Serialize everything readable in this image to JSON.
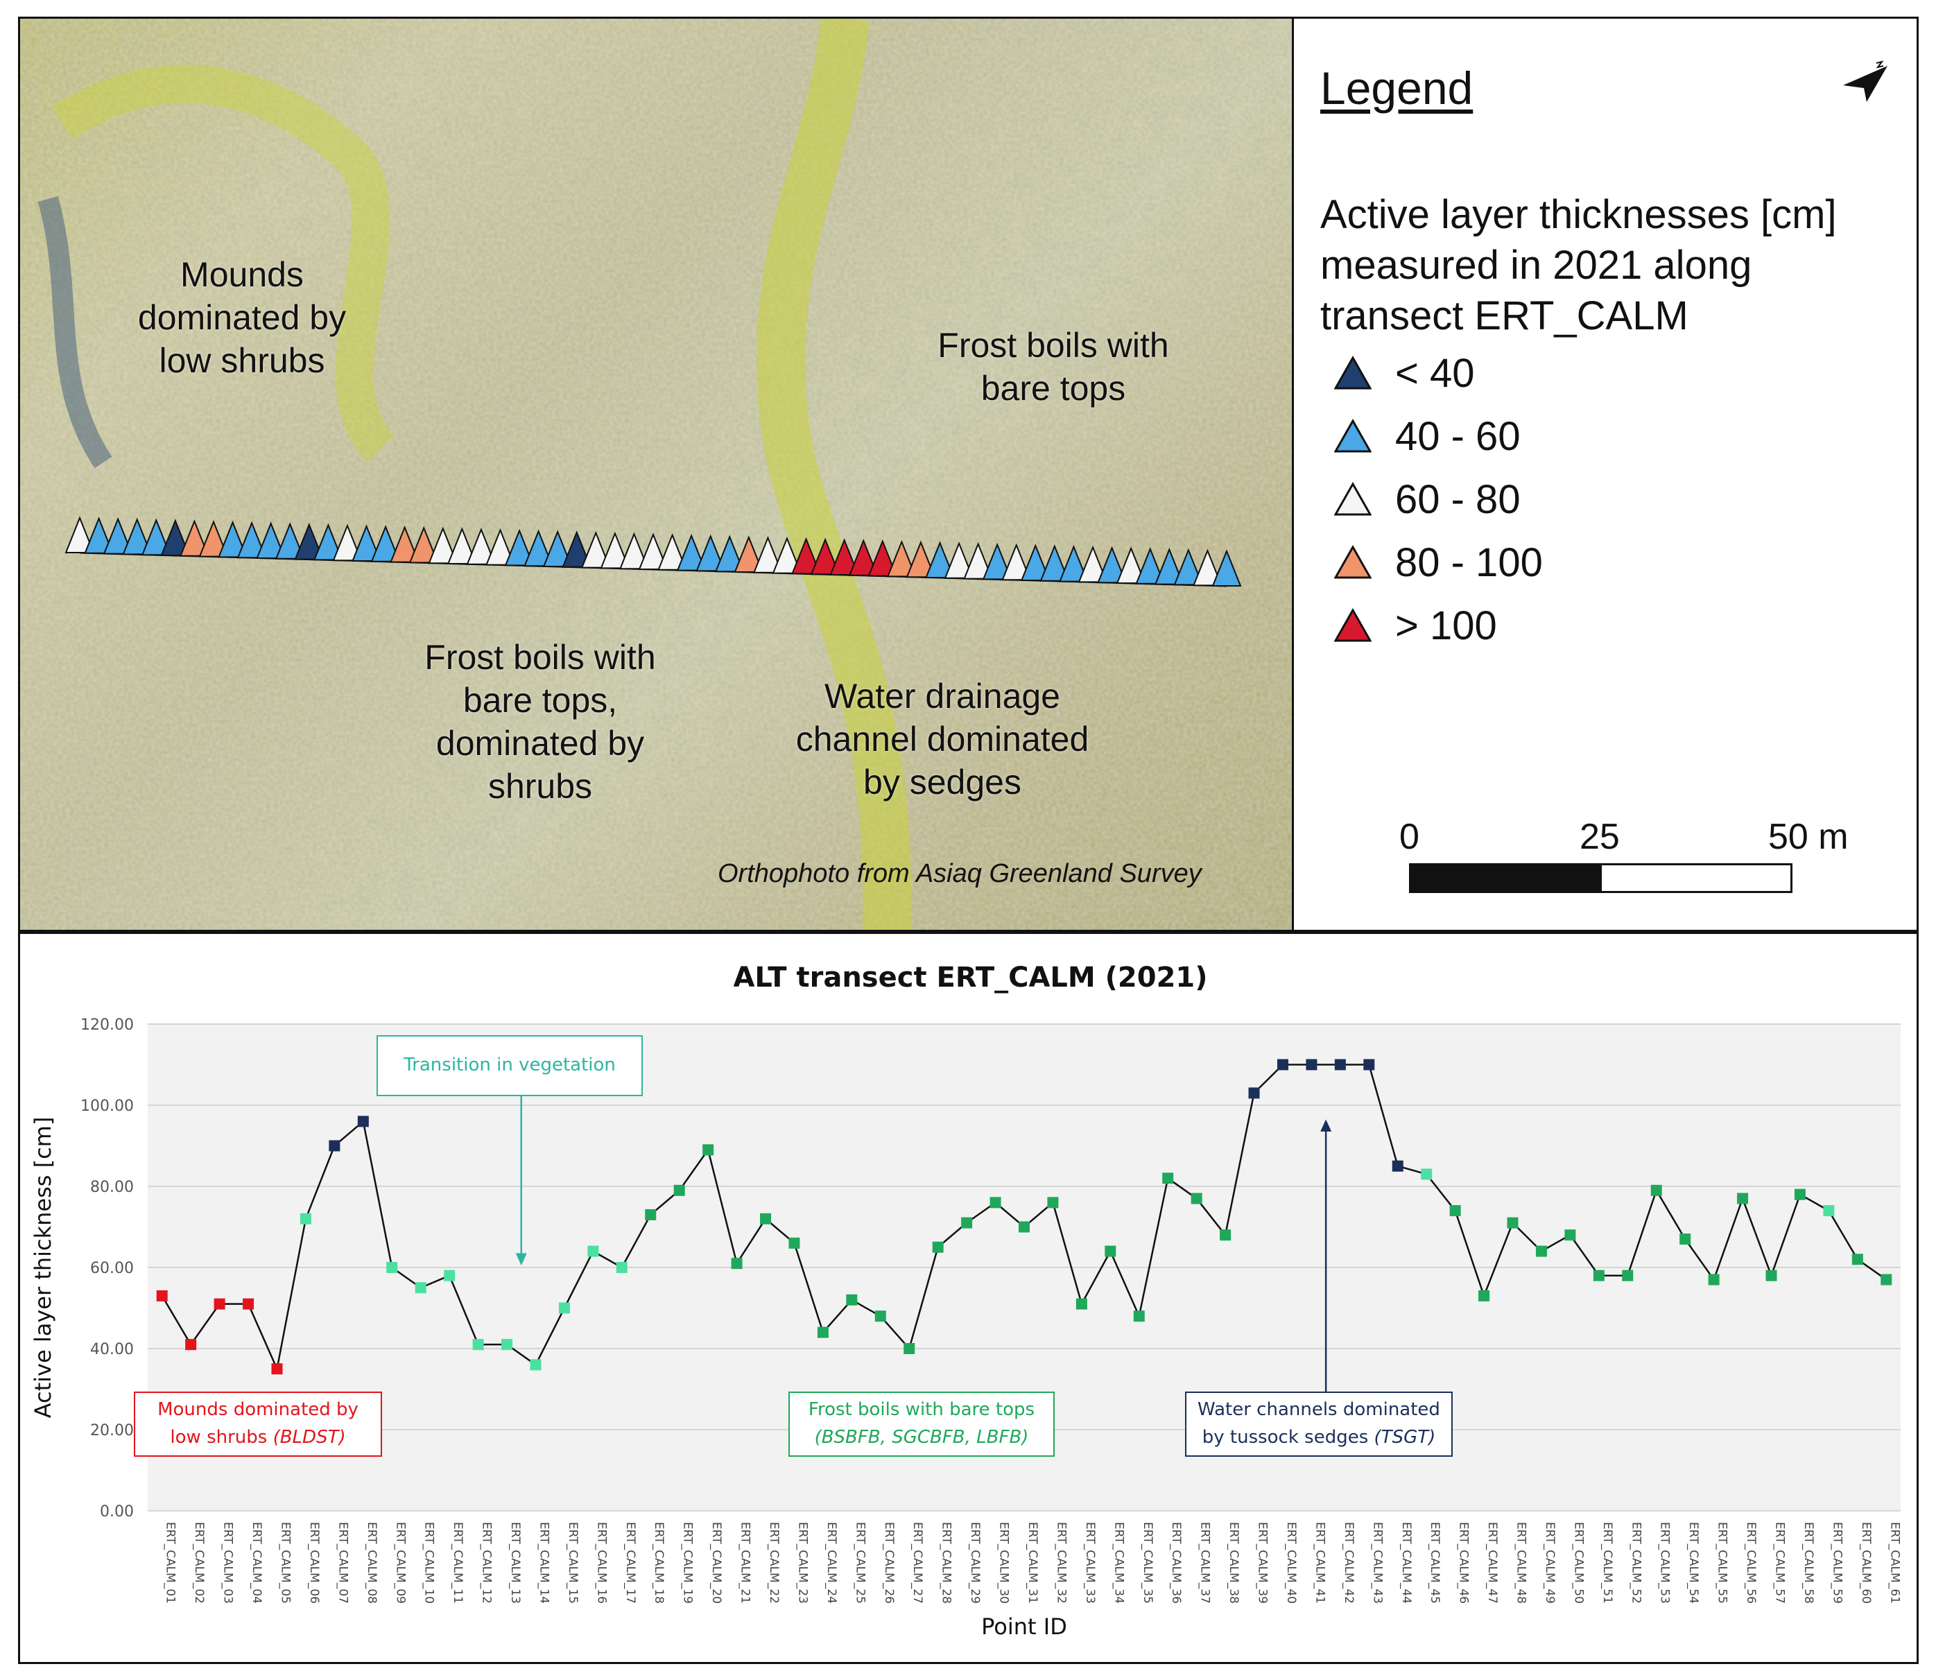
{
  "map": {
    "labels": {
      "mounds": "Mounds\ndominated by\nlow shrubs",
      "frost_top": "Frost boils with\nbare tops",
      "frost_bottom": "Frost boils with\nbare tops,\ndominated by\nshrubs",
      "drainage": "Water drainage\nchannel dominated\nby sedges"
    },
    "credit": "Orthophoto from Asiaq Greenland Survey",
    "transect_classes": [
      3,
      2,
      2,
      2,
      2,
      1,
      4,
      4,
      2,
      2,
      2,
      2,
      1,
      2,
      3,
      2,
      2,
      4,
      4,
      3,
      3,
      3,
      3,
      2,
      2,
      2,
      1,
      3,
      3,
      3,
      3,
      3,
      2,
      2,
      2,
      4,
      3,
      3,
      5,
      5,
      5,
      5,
      5,
      4,
      4,
      2,
      3,
      3,
      2,
      3,
      2,
      2,
      2,
      3,
      2,
      3,
      2,
      2,
      2,
      3,
      2
    ]
  },
  "legend": {
    "title": "Legend",
    "subtitle": "Active layer thicknesses [cm]\nmeasured in 2021 along\ntransect ERT_CALM",
    "items": [
      {
        "label": "< 40",
        "color": "#1f3f6e"
      },
      {
        "label": "40 - 60",
        "color": "#4aa8e6"
      },
      {
        "label": "60 - 80",
        "color": "#f5f5f5"
      },
      {
        "label": "80 - 100",
        "color": "#f0946b"
      },
      {
        "label": "> 100",
        "color": "#d7192e"
      }
    ],
    "scale": {
      "ticks": [
        "0",
        "25",
        "50 m"
      ]
    },
    "north_icon": "north-arrow-icon"
  },
  "chart_data": {
    "type": "line",
    "title": "ALT transect ERT_CALM (2021)",
    "xlabel": "Point ID",
    "ylabel": "Active layer thickness [cm]",
    "ylim": [
      0,
      120
    ],
    "yticks": [
      "0.00",
      "20.00",
      "40.00",
      "60.00",
      "80.00",
      "100.00",
      "120.00"
    ],
    "grid": true,
    "categories": [
      "ERT_CALM_01",
      "ERT_CALM_02",
      "ERT_CALM_03",
      "ERT_CALM_04",
      "ERT_CALM_05",
      "ERT_CALM_06",
      "ERT_CALM_07",
      "ERT_CALM_08",
      "ERT_CALM_09",
      "ERT_CALM_10",
      "ERT_CALM_11",
      "ERT_CALM_12",
      "ERT_CALM_13",
      "ERT_CALM_14",
      "ERT_CALM_15",
      "ERT_CALM_16",
      "ERT_CALM_17",
      "ERT_CALM_18",
      "ERT_CALM_19",
      "ERT_CALM_20",
      "ERT_CALM_21",
      "ERT_CALM_22",
      "ERT_CALM_23",
      "ERT_CALM_24",
      "ERT_CALM_25",
      "ERT_CALM_26",
      "ERT_CALM_27",
      "ERT_CALM_28",
      "ERT_CALM_29",
      "ERT_CALM_30",
      "ERT_CALM_31",
      "ERT_CALM_32",
      "ERT_CALM_33",
      "ERT_CALM_34",
      "ERT_CALM_35",
      "ERT_CALM_36",
      "ERT_CALM_37",
      "ERT_CALM_38",
      "ERT_CALM_39",
      "ERT_CALM_40",
      "ERT_CALM_41",
      "ERT_CALM_42",
      "ERT_CALM_43",
      "ERT_CALM_44",
      "ERT_CALM_45",
      "ERT_CALM_46",
      "ERT_CALM_47",
      "ERT_CALM_48",
      "ERT_CALM_49",
      "ERT_CALM_50",
      "ERT_CALM_51",
      "ERT_CALM_52",
      "ERT_CALM_53",
      "ERT_CALM_54",
      "ERT_CALM_55",
      "ERT_CALM_56",
      "ERT_CALM_57",
      "ERT_CALM_58",
      "ERT_CALM_59",
      "ERT_CALM_60",
      "ERT_CALM_61"
    ],
    "values": [
      53,
      41,
      51,
      51,
      35,
      72,
      90,
      96,
      60,
      55,
      58,
      41,
      41,
      36,
      50,
      64,
      60,
      73,
      79,
      89,
      61,
      72,
      66,
      44,
      52,
      48,
      40,
      65,
      71,
      76,
      70,
      76,
      51,
      64,
      48,
      82,
      77,
      68,
      103,
      110,
      110,
      110,
      110,
      85,
      83,
      74,
      53,
      71,
      64,
      68,
      58,
      58,
      79,
      67,
      57,
      77,
      58,
      78,
      74,
      62,
      57
    ],
    "marker_colors": [
      "#e3141c",
      "#e3141c",
      "#e3141c",
      "#e3141c",
      "#e3141c",
      "#4ce0a0",
      "#1b2f5a",
      "#1b2f5a",
      "#4ce0a0",
      "#4ce0a0",
      "#4ce0a0",
      "#4ce0a0",
      "#4ce0a0",
      "#4ce0a0",
      "#4ce0a0",
      "#4ce0a0",
      "#4ce0a0",
      "#1fa85a",
      "#1fa85a",
      "#1fa85a",
      "#1fa85a",
      "#1fa85a",
      "#1fa85a",
      "#1fa85a",
      "#1fa85a",
      "#1fa85a",
      "#1fa85a",
      "#1fa85a",
      "#1fa85a",
      "#1fa85a",
      "#1fa85a",
      "#1fa85a",
      "#1fa85a",
      "#1fa85a",
      "#1fa85a",
      "#1fa85a",
      "#1fa85a",
      "#1fa85a",
      "#1b2f5a",
      "#1b2f5a",
      "#1b2f5a",
      "#1b2f5a",
      "#1b2f5a",
      "#1b2f5a",
      "#4ce0a0",
      "#1fa85a",
      "#1fa85a",
      "#1fa85a",
      "#1fa85a",
      "#1fa85a",
      "#1fa85a",
      "#1fa85a",
      "#1fa85a",
      "#1fa85a",
      "#1fa85a",
      "#1fa85a",
      "#1fa85a",
      "#1fa85a",
      "#4ce0a0",
      "#1fa85a",
      "#1fa85a"
    ],
    "annotations": [
      {
        "text": "Transition in vegetation",
        "color": "#2bb5a0"
      },
      {
        "text": "Mounds dominated by",
        "text2": "low shrubs ",
        "italic": "(BLDST)",
        "color": "#e3141c"
      },
      {
        "text": "Frost boils with bare tops",
        "italic": "(BSBFB, SGCBFB, LBFB)",
        "color": "#1fa85a"
      },
      {
        "text": "Water channels dominated",
        "text2": "by tussock sedges ",
        "italic": "(TSGT)",
        "color": "#1b2f5a"
      }
    ]
  }
}
